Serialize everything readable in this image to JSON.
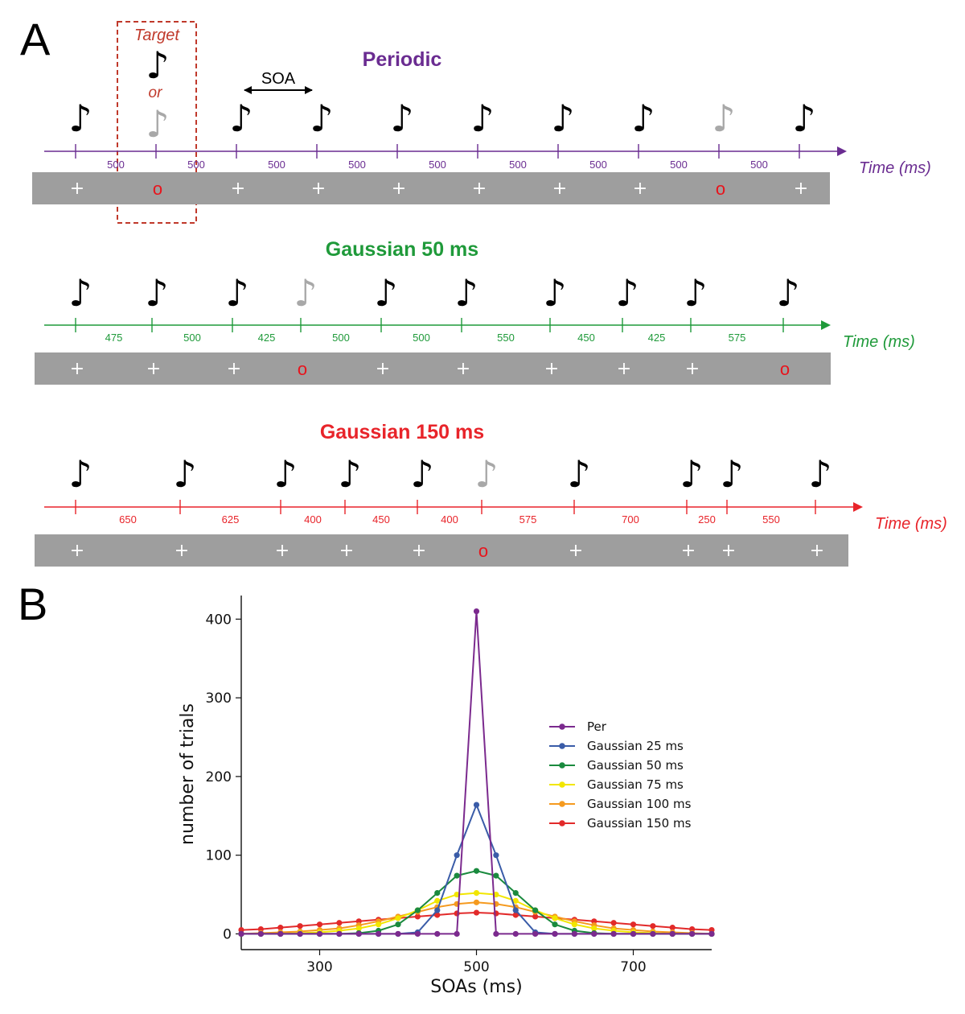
{
  "panel_a": {
    "letter": "A",
    "annotations": {
      "target": "Target",
      "or": "or",
      "soa": "SOA"
    },
    "note_glyph": "♪",
    "plus_glyph": "+",
    "target_glyph": "o",
    "rows": [
      {
        "id": "periodic",
        "title": "Periodic",
        "color": "#6a2c91",
        "time_label": "Time (ms)",
        "notes": [
          "black",
          "black",
          "black",
          "black",
          "black",
          "black",
          "black",
          "grey",
          "black"
        ],
        "intervals": [
          500,
          500,
          500,
          500,
          500,
          500,
          500,
          500,
          500
        ],
        "interval_labels": [
          "500",
          "500",
          "500",
          "500",
          "500",
          "500",
          "500",
          "500",
          "500"
        ],
        "screen": [
          "+",
          "o",
          "+",
          "+",
          "+",
          "+",
          "+",
          "+",
          "o",
          "+"
        ]
      },
      {
        "id": "gauss50",
        "title": "Gaussian 50 ms",
        "color": "#1f9a3a",
        "time_label": "Time (ms)",
        "notes": [
          "black",
          "black",
          "black",
          "grey",
          "black",
          "black",
          "black",
          "black",
          "black",
          "black"
        ],
        "intervals": [
          475,
          500,
          425,
          500,
          500,
          550,
          450,
          425,
          575
        ],
        "interval_labels": [
          "475",
          "500",
          "425",
          "500",
          "500",
          "550",
          "450",
          "425",
          "575"
        ],
        "screen": [
          "+",
          "+",
          "+",
          "o",
          "+",
          "+",
          "+",
          "+",
          "+",
          "o"
        ]
      },
      {
        "id": "gauss150",
        "title": "Gaussian 150 ms",
        "color": "#e8242a",
        "time_label": "Time (ms)",
        "notes": [
          "black",
          "black",
          "black",
          "black",
          "black",
          "grey",
          "black",
          "black",
          "black",
          "black"
        ],
        "intervals": [
          650,
          625,
          400,
          450,
          400,
          575,
          700,
          250,
          550
        ],
        "interval_labels": [
          "650",
          "625",
          "400",
          "450",
          "400",
          "575",
          "700",
          "250",
          "550"
        ],
        "screen": [
          "+",
          "+",
          "+",
          "+",
          "+",
          "o",
          "+",
          "+",
          "+",
          "+"
        ]
      }
    ]
  },
  "panel_b": {
    "letter": "B"
  },
  "chart_data": {
    "type": "line",
    "xlabel": "SOAs (ms)",
    "ylabel": "number of trials",
    "xlim": [
      200,
      800
    ],
    "ylim": [
      -20,
      430
    ],
    "xticks": [
      300,
      500,
      700
    ],
    "yticks": [
      0,
      100,
      200,
      300,
      400
    ],
    "x": [
      200,
      225,
      250,
      275,
      300,
      325,
      350,
      375,
      400,
      425,
      450,
      475,
      500,
      525,
      550,
      575,
      600,
      625,
      650,
      675,
      700,
      725,
      750,
      775,
      800
    ],
    "series": [
      {
        "name": "Per",
        "color": "#7b2a8e",
        "values": [
          0,
          0,
          0,
          0,
          0,
          0,
          0,
          0,
          0,
          0,
          0,
          0,
          410,
          0,
          0,
          0,
          0,
          0,
          0,
          0,
          0,
          0,
          0,
          0,
          0
        ]
      },
      {
        "name": "Gaussian 25 ms",
        "color": "#3a5ca8",
        "values": [
          0,
          0,
          0,
          0,
          0,
          0,
          0,
          0,
          0,
          2,
          30,
          100,
          164,
          100,
          30,
          2,
          0,
          0,
          0,
          0,
          0,
          0,
          0,
          0,
          0
        ]
      },
      {
        "name": "Gaussian 50 ms",
        "color": "#1a8a3e",
        "values": [
          0,
          0,
          0,
          0,
          0,
          0,
          1,
          4,
          12,
          30,
          52,
          74,
          80,
          74,
          52,
          30,
          12,
          4,
          1,
          0,
          0,
          0,
          0,
          0,
          0
        ]
      },
      {
        "name": "Gaussian 75 ms",
        "color": "#f2e600",
        "values": [
          0,
          0,
          0,
          1,
          2,
          4,
          7,
          12,
          20,
          30,
          42,
          50,
          52,
          50,
          42,
          30,
          20,
          12,
          7,
          4,
          2,
          1,
          0,
          0,
          0
        ]
      },
      {
        "name": "Gaussian 100 ms",
        "color": "#f59a1f",
        "values": [
          0,
          1,
          2,
          3,
          5,
          7,
          11,
          16,
          22,
          28,
          34,
          38,
          40,
          38,
          34,
          28,
          22,
          16,
          11,
          7,
          5,
          3,
          2,
          1,
          0
        ]
      },
      {
        "name": "Gaussian 150 ms",
        "color": "#e22a2a",
        "values": [
          5,
          6,
          8,
          10,
          12,
          14,
          16,
          18,
          20,
          22,
          24,
          26,
          27,
          26,
          24,
          22,
          20,
          18,
          16,
          14,
          12,
          10,
          8,
          6,
          5
        ]
      }
    ],
    "legend_position": "right"
  }
}
